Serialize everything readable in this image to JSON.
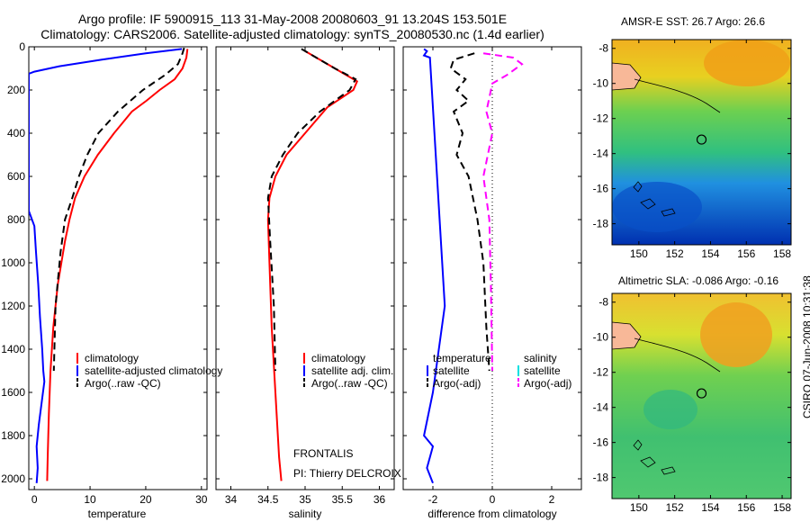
{
  "header": {
    "line1": "Argo profile: IF 5900915_113 31-May-2008 20080603_91 13.204S 153.501E",
    "line2": "Climatology: CARS2006. Satellite-adjusted climatology: synTS_20080530.nc (1.4d earlier)"
  },
  "credit": "CSIRO 07-Jun-2008 10:31:38",
  "colors": {
    "climatology": "#ff0000",
    "satellite": "#0000ff",
    "argo": "#000000",
    "salinity_satellite": "#00e0e0",
    "salinity_argo": "#ff00ff"
  },
  "chart_data": [
    {
      "type": "line",
      "xlabel": "temperature",
      "ylabel": "",
      "xlim": [
        -1,
        31
      ],
      "ylim": [
        2050,
        0
      ],
      "xticks": [
        0,
        10,
        20,
        30
      ],
      "yticks": [
        0,
        200,
        400,
        600,
        800,
        1000,
        1200,
        1400,
        1600,
        1800,
        2000
      ],
      "legend": [
        "climatology",
        "satellite-adjusted climatology",
        "Argo(..raw -QC)"
      ],
      "series": [
        {
          "name": "climatology",
          "color": "#ff0000",
          "dash": "none",
          "x": [
            27.5,
            27.3,
            26.6,
            25.2,
            22.5,
            20.1,
            17.5,
            14.3,
            11.4,
            9.0,
            7.3,
            6.3,
            5.5,
            4.2,
            3.4,
            2.9,
            2.6,
            2.4,
            2.3
          ],
          "y": [
            10,
            50,
            100,
            150,
            200,
            250,
            300,
            400,
            500,
            600,
            700,
            800,
            900,
            1100,
            1300,
            1500,
            1700,
            1900,
            2010
          ]
        },
        {
          "name": "satellite-adjusted climatology",
          "color": "#0000ff",
          "dash": "none",
          "x": [
            26.5,
            20.0,
            12.0,
            4.5,
            0.0,
            -1.0,
            -1.0,
            0.0,
            0.3,
            0.7,
            1.0,
            1.4,
            1.6,
            1.8,
            1.3,
            0.8,
            0.4,
            0.6,
            0.4
          ],
          "y": [
            10,
            30,
            60,
            90,
            115,
            125,
            760,
            830,
            950,
            1100,
            1250,
            1400,
            1500,
            1550,
            1650,
            1750,
            1850,
            1950,
            2020
          ]
        },
        {
          "name": "Argo(..raw -QC)",
          "color": "#000000",
          "dash": "8,5",
          "x": [
            26.9,
            26.6,
            25.8,
            23.5,
            19.5,
            15.0,
            11.5,
            9.5,
            8.0,
            6.8,
            5.5,
            4.7,
            3.8,
            3.5
          ],
          "y": [
            5,
            30,
            80,
            130,
            200,
            300,
            400,
            500,
            600,
            700,
            800,
            950,
            1200,
            1500
          ]
        }
      ]
    },
    {
      "type": "line",
      "xlabel": "salinity",
      "xlim": [
        33.8,
        36.2
      ],
      "ylim": [
        2050,
        0
      ],
      "xticks": [
        34,
        34.5,
        35,
        35.5,
        36
      ],
      "legend": [
        "climatology",
        "satellite adj. clim.",
        "Argo(..raw -QC)"
      ],
      "annotations": [
        "FRONTALIS",
        "PI: Thierry DELCROIX"
      ],
      "series": [
        {
          "name": "climatology",
          "color": "#ff0000",
          "dash": "none",
          "x": [
            35.0,
            35.2,
            35.5,
            35.7,
            35.65,
            35.3,
            35.0,
            34.75,
            34.6,
            34.52,
            34.5,
            34.52,
            34.55,
            34.6,
            34.65,
            34.68
          ],
          "y": [
            20,
            60,
            120,
            160,
            200,
            280,
            400,
            500,
            600,
            700,
            800,
            1000,
            1300,
            1600,
            1900,
            2010
          ]
        },
        {
          "name": "Argo(..raw -QC)",
          "color": "#000000",
          "dash": "8,5",
          "x": [
            34.95,
            35.1,
            35.4,
            35.68,
            35.6,
            35.2,
            34.9,
            34.7,
            34.55,
            34.5,
            34.53,
            34.58,
            34.6
          ],
          "y": [
            10,
            40,
            100,
            150,
            200,
            300,
            400,
            500,
            600,
            700,
            900,
            1200,
            1500
          ]
        }
      ]
    },
    {
      "type": "line",
      "xlabel": "difference from climatology",
      "xlim": [
        -3,
        3
      ],
      "ylim": [
        2050,
        0
      ],
      "xticks": [
        -2,
        0,
        2
      ],
      "legend": [
        "temperature",
        "satellite",
        "Argo(-adj)",
        "salinity",
        "satellite",
        "Argo(-adj)"
      ],
      "series": [
        {
          "name": "temperature satellite",
          "color": "#0000ff",
          "dash": "none",
          "x": [
            -2.3,
            -2.2,
            -2.3,
            -2.1,
            -1.6,
            -1.8,
            -2.0,
            -2.3,
            -2.0,
            -2.2,
            -2.0
          ],
          "y": [
            10,
            20,
            40,
            50,
            1200,
            1400,
            1600,
            1800,
            1850,
            1950,
            2020
          ]
        },
        {
          "name": "temperature Argo(-adj)",
          "color": "#000000",
          "dash": "8,5",
          "x": [
            -0.6,
            -1.3,
            -1.4,
            -0.9,
            -1.2,
            -0.8,
            -1.3,
            -1.0,
            -1.2,
            -0.8,
            -0.5,
            -0.3,
            -0.2,
            -0.1
          ],
          "y": [
            30,
            60,
            100,
            150,
            200,
            250,
            300,
            400,
            500,
            600,
            800,
            1000,
            1300,
            1500
          ]
        },
        {
          "name": "salinity Argo(-adj)",
          "color": "#ff00ff",
          "dash": "8,5",
          "x": [
            -0.3,
            0.7,
            1.0,
            0.5,
            0.0,
            -0.2,
            0.0,
            -0.3,
            -0.1,
            -0.05,
            0.0
          ],
          "y": [
            30,
            50,
            80,
            130,
            170,
            300,
            400,
            600,
            800,
            1100,
            1500
          ]
        }
      ]
    },
    {
      "type": "heatmap",
      "title": "AMSR-E SST: 26.7 Argo: 26.6",
      "xlim": [
        148.5,
        158.5
      ],
      "ylim": [
        -19.2,
        -7.5
      ],
      "xticks": [
        150,
        152,
        154,
        156,
        158
      ],
      "yticks": [
        -8,
        -10,
        -12,
        -14,
        -16,
        -18
      ],
      "marker": {
        "lon": 153.5,
        "lat": -13.2
      }
    },
    {
      "type": "heatmap",
      "title": "Altimetric SLA: -0.086 Argo: -0.16",
      "xlim": [
        148.5,
        158.5
      ],
      "ylim": [
        -19.2,
        -7.5
      ],
      "xticks": [
        150,
        152,
        154,
        156,
        158
      ],
      "yticks": [
        -8,
        -10,
        -12,
        -14,
        -16,
        -18
      ],
      "marker": {
        "lon": 153.5,
        "lat": -13.2
      }
    }
  ]
}
